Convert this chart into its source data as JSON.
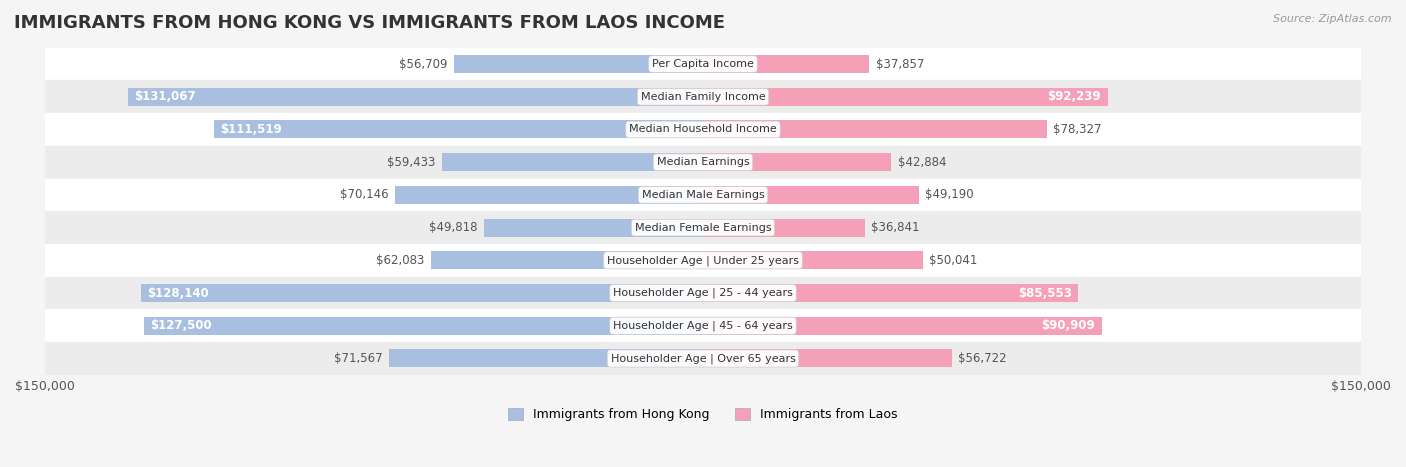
{
  "title": "IMMIGRANTS FROM HONG KONG VS IMMIGRANTS FROM LAOS INCOME",
  "source": "Source: ZipAtlas.com",
  "categories": [
    "Per Capita Income",
    "Median Family Income",
    "Median Household Income",
    "Median Earnings",
    "Median Male Earnings",
    "Median Female Earnings",
    "Householder Age | Under 25 years",
    "Householder Age | 25 - 44 years",
    "Householder Age | 45 - 64 years",
    "Householder Age | Over 65 years"
  ],
  "hong_kong_values": [
    56709,
    131067,
    111519,
    59433,
    70146,
    49818,
    62083,
    128140,
    127500,
    71567
  ],
  "laos_values": [
    37857,
    92239,
    78327,
    42884,
    49190,
    36841,
    50041,
    85553,
    90909,
    56722
  ],
  "hong_kong_labels": [
    "$56,709",
    "$131,067",
    "$111,519",
    "$59,433",
    "$70,146",
    "$49,818",
    "$62,083",
    "$128,140",
    "$127,500",
    "$71,567"
  ],
  "laos_labels": [
    "$37,857",
    "$92,239",
    "$78,327",
    "$42,884",
    "$49,190",
    "$36,841",
    "$50,041",
    "$85,553",
    "$90,909",
    "$56,722"
  ],
  "hong_kong_color": "#a8bfdf",
  "laos_color": "#f4a0b8",
  "hong_kong_color_dark": "#7096c8",
  "laos_color_dark": "#ee6090",
  "bar_height": 0.55,
  "max_val": 150000,
  "bg_color": "#f5f5f5",
  "row_bg_light": "#ffffff",
  "row_bg_dark": "#ececec",
  "legend_hk": "Immigrants from Hong Kong",
  "legend_laos": "Immigrants from Laos"
}
